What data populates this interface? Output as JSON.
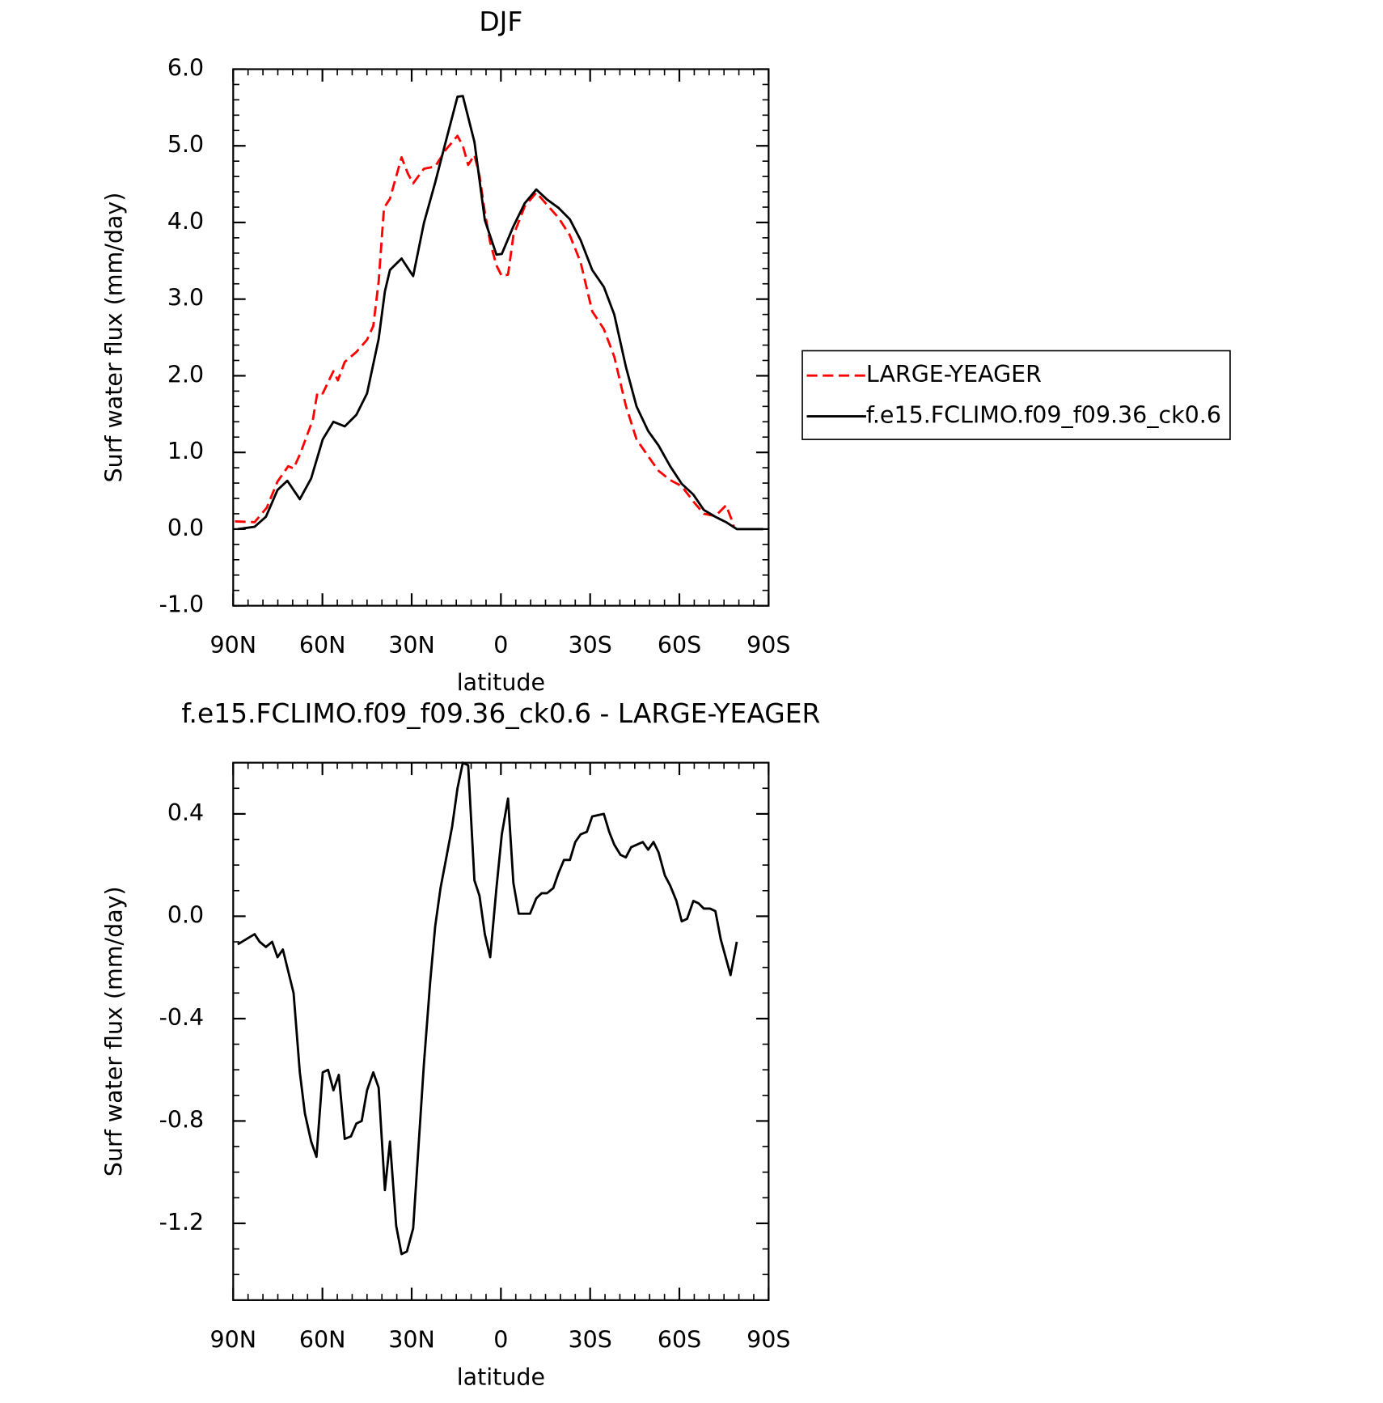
{
  "chart_data": [
    {
      "type": "line",
      "title": "DJF",
      "xlabel": "latitude",
      "ylabel": "Surf water flux (mm/day)",
      "xlim": [
        90,
        -90
      ],
      "xticks": [
        {
          "value": 90,
          "label": "90N"
        },
        {
          "value": 60,
          "label": "60N"
        },
        {
          "value": 30,
          "label": "30N"
        },
        0,
        {
          "value": -30,
          "label": "30S"
        },
        {
          "value": -60,
          "label": "60S"
        },
        {
          "value": -90,
          "label": "90S"
        }
      ],
      "ylim": [
        -1,
        6
      ],
      "yticks": [
        {
          "value": -1,
          "label": "-1.0"
        },
        {
          "value": 0,
          "label": "0.0"
        },
        {
          "value": 1,
          "label": "1.0"
        },
        {
          "value": 2,
          "label": "2.0"
        },
        {
          "value": 3,
          "label": "3.0"
        },
        {
          "value": 4,
          "label": "4.0"
        },
        {
          "value": 5,
          "label": "5.0"
        },
        {
          "value": 6,
          "label": "6.0"
        }
      ],
      "legend": "right",
      "series": [
        {
          "name": "LARGE-YEAGER",
          "color": "#ff0000",
          "line_style": "dashed",
          "x": [
            89.4,
            82.8,
            78.7,
            75.1,
            71.5,
            69.7,
            67.4,
            63.2,
            61.7,
            59.9,
            56.3,
            54.8,
            52.5,
            48.6,
            45.0,
            42.9,
            41.1,
            39.3,
            37.3,
            33.4,
            31.3,
            29.5,
            25.9,
            22.1,
            18.5,
            14.6,
            12.8,
            11.0,
            8.9,
            7.2,
            5.4,
            3.6,
            1.5,
            -0.3,
            -2.4,
            -4.2,
            -8.0,
            -11.9,
            -15.5,
            -19.4,
            -23.2,
            -26.8,
            -30.7,
            -34.6,
            -38.1,
            -42.0,
            -45.6,
            -49.5,
            -53.0,
            -56.9,
            -60.8,
            -64.7,
            -68.2,
            -72.1,
            -75.7,
            -77.5,
            -78.4
          ],
          "values": [
            0.1,
            0.09,
            0.28,
            0.62,
            0.82,
            0.79,
            0.99,
            1.43,
            1.78,
            1.77,
            2.06,
            1.94,
            2.18,
            2.31,
            2.47,
            2.65,
            3.23,
            4.19,
            4.31,
            4.85,
            4.64,
            4.51,
            4.7,
            4.73,
            4.95,
            5.13,
            5.0,
            4.75,
            4.88,
            4.61,
            4.13,
            3.74,
            3.44,
            3.3,
            3.32,
            3.83,
            4.21,
            4.39,
            4.23,
            4.06,
            3.83,
            3.48,
            2.84,
            2.61,
            2.25,
            1.61,
            1.17,
            0.95,
            0.76,
            0.64,
            0.56,
            0.36,
            0.2,
            0.17,
            0.31,
            0.13,
            0.02
          ]
        },
        {
          "name": "f.e15.FCLIMO.f09_f09.36_ck0.6",
          "color": "#000000",
          "line_style": "solid",
          "x": [
            88.5,
            82.8,
            79.0,
            75.1,
            71.8,
            67.6,
            63.8,
            59.9,
            56.3,
            52.5,
            48.6,
            45.0,
            41.1,
            39.0,
            37.3,
            33.4,
            29.5,
            25.9,
            22.1,
            18.5,
            14.6,
            12.8,
            8.9,
            5.4,
            1.5,
            -0.3,
            -4.2,
            -8.0,
            -11.9,
            -15.5,
            -19.4,
            -23.2,
            -26.8,
            -30.7,
            -34.6,
            -38.1,
            -42.0,
            -45.6,
            -49.5,
            -53.0,
            -56.9,
            -60.8,
            -64.7,
            -68.2,
            -72.1,
            -75.7,
            -79.3,
            -85.2,
            -88.2
          ],
          "values": [
            0.0,
            0.03,
            0.16,
            0.51,
            0.63,
            0.39,
            0.66,
            1.17,
            1.4,
            1.34,
            1.49,
            1.77,
            2.48,
            3.1,
            3.38,
            3.53,
            3.3,
            3.99,
            4.52,
            5.06,
            5.64,
            5.65,
            5.05,
            4.03,
            3.58,
            3.59,
            3.95,
            4.25,
            4.43,
            4.3,
            4.19,
            4.04,
            3.77,
            3.38,
            3.16,
            2.8,
            2.12,
            1.6,
            1.28,
            1.09,
            0.82,
            0.59,
            0.45,
            0.25,
            0.16,
            0.09,
            0.0,
            0.0,
            0.0
          ]
        }
      ]
    },
    {
      "type": "line",
      "title": "f.e15.FCLIMO.f09_f09.36_ck0.6 - LARGE-YEAGER",
      "xlabel": "latitude",
      "ylabel": "Surf water flux (mm/day)",
      "xlim": [
        90,
        -90
      ],
      "xticks": [
        {
          "value": 90,
          "label": "90N"
        },
        {
          "value": 60,
          "label": "60N"
        },
        {
          "value": 30,
          "label": "30N"
        },
        0,
        {
          "value": -30,
          "label": "30S"
        },
        {
          "value": -60,
          "label": "60S"
        },
        {
          "value": -90,
          "label": "90S"
        }
      ],
      "ylim": [
        -1.5,
        0.6
      ],
      "yticks": [
        -1.2,
        -0.8,
        -0.4,
        {
          "value": 0,
          "label": "0.0"
        },
        0.4
      ],
      "series": [
        {
          "color": "#000000",
          "line_style": "solid",
          "x": [
            88.5,
            82.8,
            81.1,
            79.0,
            76.9,
            75.1,
            73.3,
            69.7,
            67.6,
            65.9,
            63.8,
            62.0,
            59.9,
            58.1,
            56.3,
            54.5,
            52.5,
            50.4,
            48.6,
            46.8,
            45.0,
            42.9,
            41.1,
            39.0,
            37.3,
            35.2,
            33.4,
            31.6,
            29.5,
            27.7,
            25.9,
            23.8,
            22.1,
            20.3,
            18.5,
            16.4,
            14.6,
            12.8,
            11.0,
            8.9,
            7.2,
            5.4,
            3.6,
            1.5,
            -0.3,
            -2.4,
            -4.2,
            -6.0,
            -9.8,
            -11.9,
            -13.7,
            -15.5,
            -17.6,
            -19.4,
            -21.2,
            -23.2,
            -25.0,
            -26.8,
            -28.9,
            -30.7,
            -34.6,
            -36.4,
            -38.1,
            -40.2,
            -42.0,
            -43.8,
            -47.7,
            -49.5,
            -51.3,
            -53.0,
            -55.1,
            -56.9,
            -59.0,
            -60.8,
            -62.6,
            -64.7,
            -66.5,
            -68.2,
            -70.3,
            -72.1,
            -73.9,
            -77.2,
            -79.3
          ],
          "values": [
            -0.11,
            -0.07,
            -0.1,
            -0.12,
            -0.1,
            -0.16,
            -0.13,
            -0.3,
            -0.61,
            -0.77,
            -0.88,
            -0.94,
            -0.61,
            -0.6,
            -0.68,
            -0.62,
            -0.87,
            -0.86,
            -0.81,
            -0.8,
            -0.68,
            -0.61,
            -0.67,
            -1.07,
            -0.88,
            -1.21,
            -1.32,
            -1.31,
            -1.22,
            -0.9,
            -0.58,
            -0.26,
            -0.04,
            0.11,
            0.22,
            0.35,
            0.5,
            0.6,
            0.59,
            0.14,
            0.08,
            -0.07,
            -0.16,
            0.11,
            0.32,
            0.46,
            0.13,
            0.01,
            0.01,
            0.07,
            0.09,
            0.09,
            0.11,
            0.17,
            0.22,
            0.22,
            0.29,
            0.32,
            0.33,
            0.39,
            0.4,
            0.33,
            0.28,
            0.24,
            0.23,
            0.27,
            0.29,
            0.26,
            0.29,
            0.25,
            0.16,
            0.12,
            0.06,
            -0.02,
            -0.01,
            0.06,
            0.05,
            0.03,
            0.03,
            0.02,
            -0.09,
            -0.23,
            -0.1
          ]
        }
      ]
    }
  ]
}
